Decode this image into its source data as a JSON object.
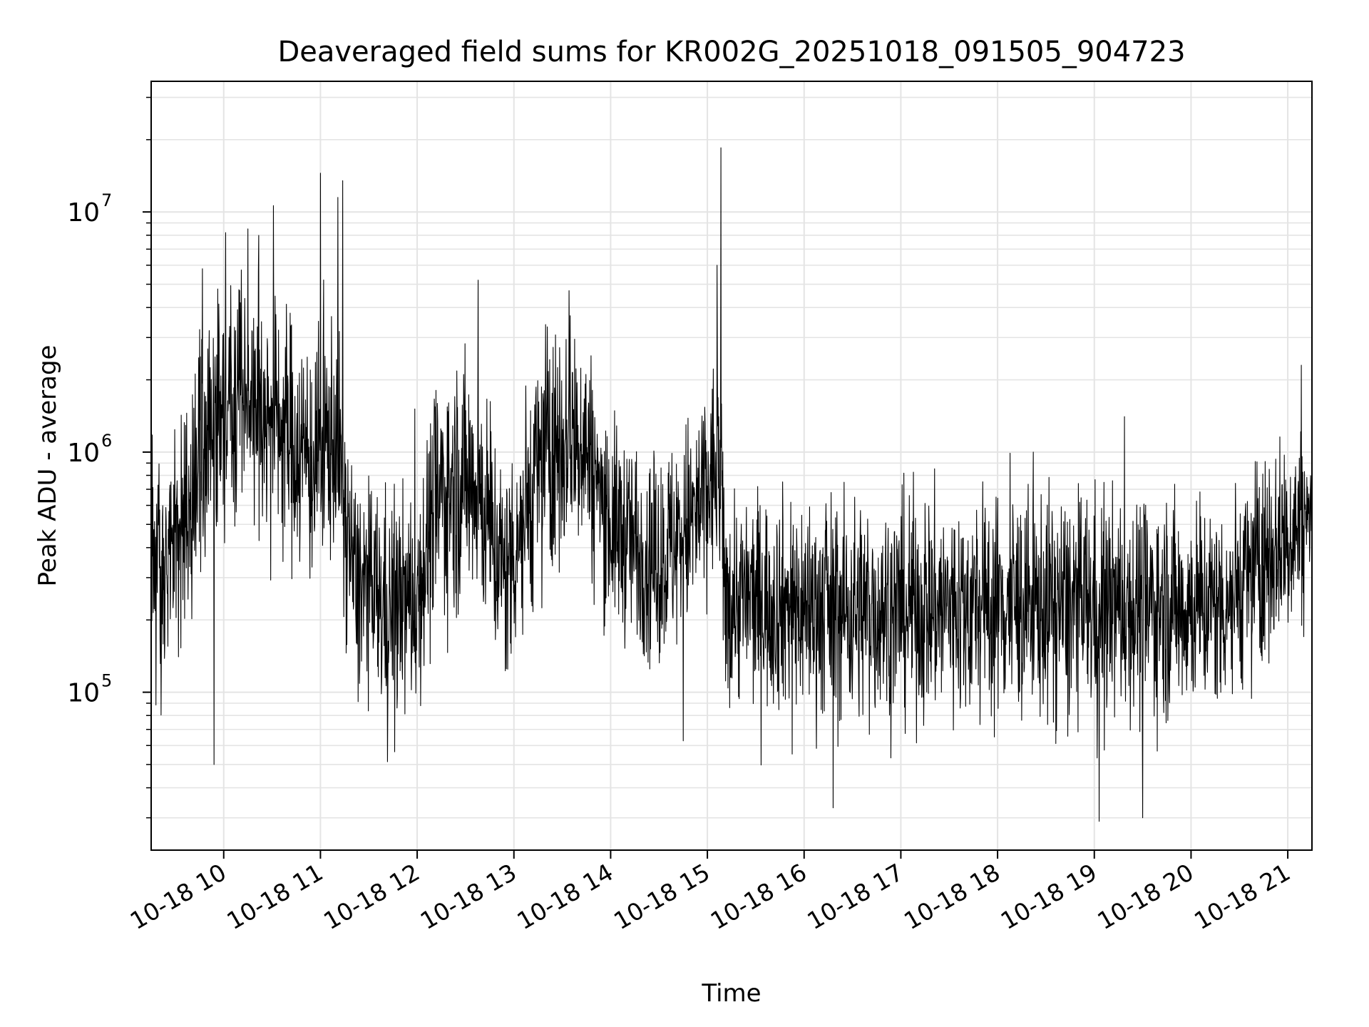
{
  "chart_data": {
    "type": "line",
    "title": "Deaveraged field sums for KR002G_20251018_091505_904723",
    "xlabel": "Time",
    "ylabel": "Peak ADU - average",
    "yscale": "log",
    "ylim": [
      22000,
      35000000
    ],
    "xlim_hours": [
      9.25,
      21.25
    ],
    "grid": true,
    "line_color": "#000000",
    "grid_color": "#e4e4e4",
    "x_ticks": [
      {
        "hour": 10,
        "label": "10-18 10"
      },
      {
        "hour": 11,
        "label": "10-18 11"
      },
      {
        "hour": 12,
        "label": "10-18 12"
      },
      {
        "hour": 13,
        "label": "10-18 13"
      },
      {
        "hour": 14,
        "label": "10-18 14"
      },
      {
        "hour": 15,
        "label": "10-18 15"
      },
      {
        "hour": 16,
        "label": "10-18 16"
      },
      {
        "hour": 17,
        "label": "10-18 17"
      },
      {
        "hour": 18,
        "label": "10-18 18"
      },
      {
        "hour": 19,
        "label": "10-18 19"
      },
      {
        "hour": 20,
        "label": "10-18 20"
      },
      {
        "hour": 21,
        "label": "10-18 21"
      }
    ],
    "y_ticks": [
      {
        "value": 100000,
        "base": "10",
        "exp": "5"
      },
      {
        "value": 1000000,
        "base": "10",
        "exp": "6"
      },
      {
        "value": 10000000,
        "base": "10",
        "exp": "7"
      }
    ],
    "envelope": [
      {
        "hour": 9.25,
        "median": 280000,
        "spread": 0.55
      },
      {
        "hour": 9.5,
        "median": 450000,
        "spread": 0.6
      },
      {
        "hour": 9.8,
        "median": 1100000,
        "spread": 0.7
      },
      {
        "hour": 10.1,
        "median": 2000000,
        "spread": 0.6
      },
      {
        "hour": 10.5,
        "median": 1500000,
        "spread": 0.6
      },
      {
        "hour": 10.9,
        "median": 900000,
        "spread": 0.6
      },
      {
        "hour": 11.15,
        "median": 1200000,
        "spread": 0.6
      },
      {
        "hour": 11.35,
        "median": 300000,
        "spread": 0.5
      },
      {
        "hour": 11.7,
        "median": 220000,
        "spread": 0.55
      },
      {
        "hour": 12.0,
        "median": 250000,
        "spread": 0.55
      },
      {
        "hour": 12.2,
        "median": 650000,
        "spread": 0.6
      },
      {
        "hour": 12.6,
        "median": 800000,
        "spread": 0.6
      },
      {
        "hour": 12.9,
        "median": 300000,
        "spread": 0.55
      },
      {
        "hour": 13.3,
        "median": 1000000,
        "spread": 0.6
      },
      {
        "hour": 13.7,
        "median": 1200000,
        "spread": 0.55
      },
      {
        "hour": 14.0,
        "median": 500000,
        "spread": 0.5
      },
      {
        "hour": 14.5,
        "median": 350000,
        "spread": 0.5
      },
      {
        "hour": 14.9,
        "median": 550000,
        "spread": 0.55
      },
      {
        "hour": 15.12,
        "median": 900000,
        "spread": 0.55
      },
      {
        "hour": 15.18,
        "median": 250000,
        "spread": 0.5
      },
      {
        "hour": 16.5,
        "median": 220000,
        "spread": 0.55
      },
      {
        "hour": 18.0,
        "median": 230000,
        "spread": 0.55
      },
      {
        "hour": 19.5,
        "median": 230000,
        "spread": 0.55
      },
      {
        "hour": 20.3,
        "median": 230000,
        "spread": 0.5
      },
      {
        "hour": 20.8,
        "median": 380000,
        "spread": 0.5
      },
      {
        "hour": 21.25,
        "median": 550000,
        "spread": 0.45
      }
    ],
    "spikes": [
      {
        "hour": 9.78,
        "value": 5800000
      },
      {
        "hour": 9.9,
        "value": 50000
      },
      {
        "hour": 10.02,
        "value": 8200000
      },
      {
        "hour": 10.25,
        "value": 8500000
      },
      {
        "hour": 11.0,
        "value": 14500000
      },
      {
        "hour": 11.18,
        "value": 11500000
      },
      {
        "hour": 11.23,
        "value": 13500000
      },
      {
        "hour": 12.63,
        "value": 5200000
      },
      {
        "hour": 13.57,
        "value": 4700000
      },
      {
        "hour": 15.1,
        "value": 6000000
      },
      {
        "hour": 15.14,
        "value": 18500000
      },
      {
        "hour": 16.3,
        "value": 33000
      },
      {
        "hour": 19.05,
        "value": 29000
      },
      {
        "hour": 19.5,
        "value": 30000
      },
      {
        "hour": 21.14,
        "value": 2300000
      }
    ]
  }
}
